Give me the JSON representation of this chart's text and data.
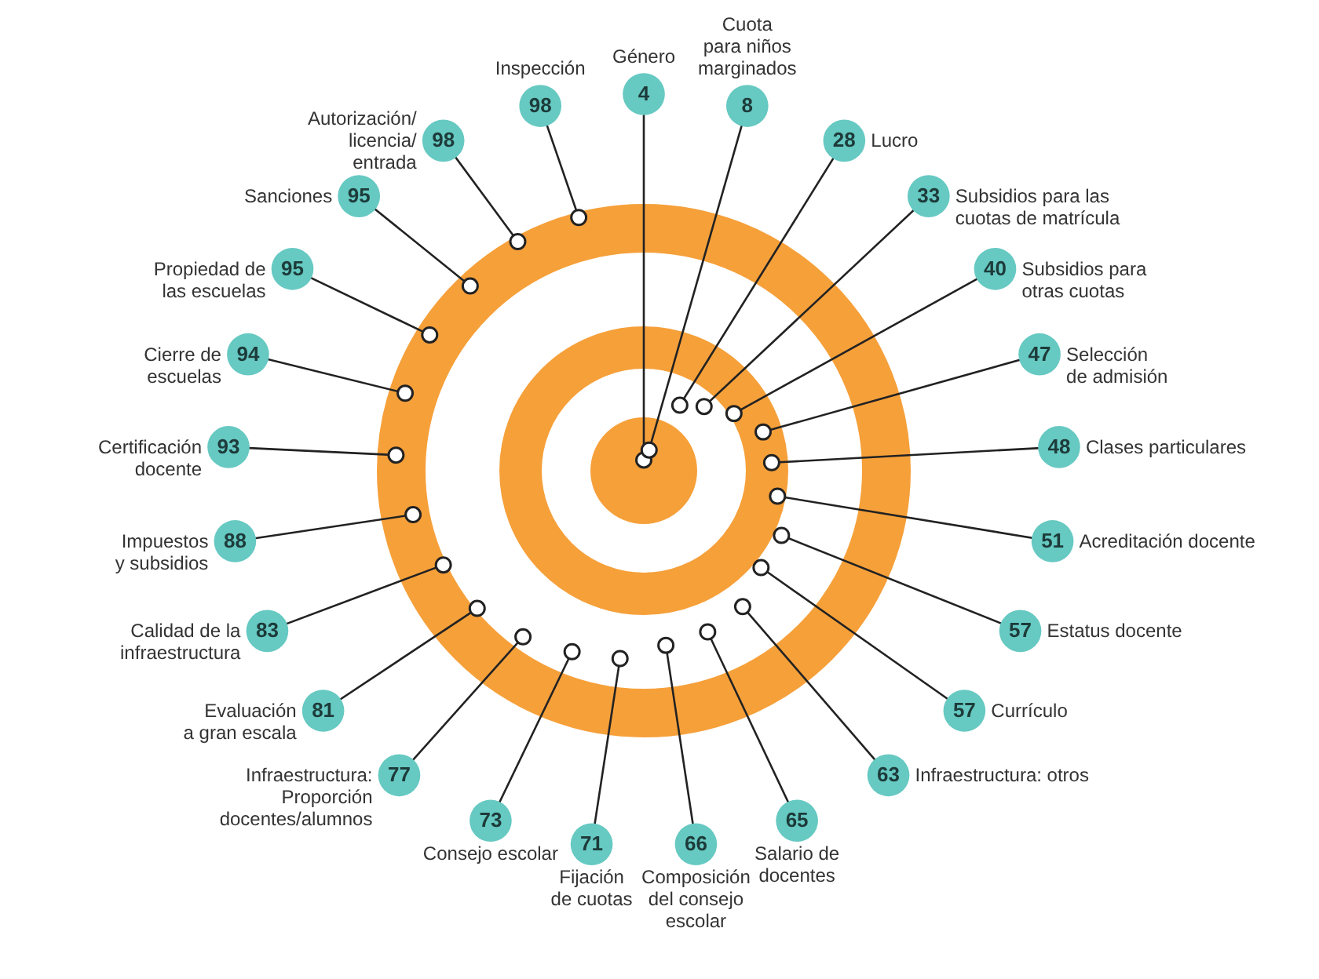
{
  "chart_data": {
    "type": "other",
    "color": "#66c9c2",
    "categories": [
      "Género",
      "Cuota\npara niños\nmarginados",
      "Lucro",
      "Subsidios para las\ncuotas de matrícula",
      "Subsidios para\notras cuotas",
      "Selección\nde admisión",
      "Clases particulares",
      "Acreditación docente",
      "Estatus docente",
      "Currículo",
      "Infraestructura: otros",
      "Salario de\ndocentes",
      "Composición\ndel consejo\nescolar",
      "Fijación\nde cuotas",
      "Consejo escolar",
      "Infraestructura:\nProporción\ndocentes/alumnos",
      "Evaluación\na gran escala",
      "Calidad de la\ninfraestructura",
      "Impuestos\ny subsidios",
      "Certificación\ndocente",
      "Cierre de\nescuelas",
      "Propiedad de\nlas escuelas",
      "Sanciones",
      "Autorización/\nlicencia/\nentrada",
      "Inspección"
    ],
    "values": [
      4,
      8,
      28,
      33,
      40,
      47,
      48,
      51,
      57,
      57,
      63,
      65,
      66,
      71,
      73,
      77,
      81,
      83,
      88,
      93,
      94,
      95,
      95,
      98,
      98
    ],
    "data_labels": true
  }
}
